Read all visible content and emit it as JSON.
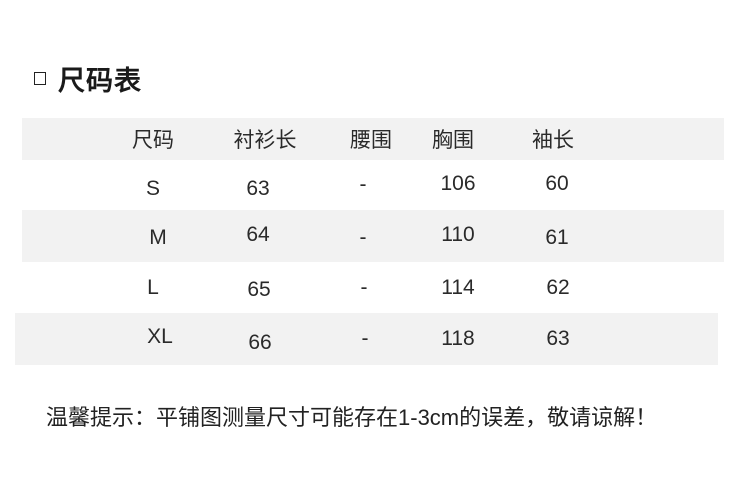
{
  "title": "尺码表",
  "table": {
    "headers": [
      "尺码",
      "衬衫长",
      "腰围",
      "胸围",
      "袖长"
    ],
    "rows": [
      [
        "S",
        "63",
        "-",
        "106",
        "60"
      ],
      [
        "M",
        "64",
        "-",
        "110",
        "61"
      ],
      [
        "L",
        "65",
        "-",
        "114",
        "62"
      ],
      [
        "XL",
        "66",
        "-",
        "118",
        "63"
      ]
    ]
  },
  "note": "温馨提示：平铺图测量尺寸可能存在1-3cm的误差，敬请谅解！",
  "colors": {
    "stripe": "#f2f2f2",
    "text": "#222222"
  }
}
